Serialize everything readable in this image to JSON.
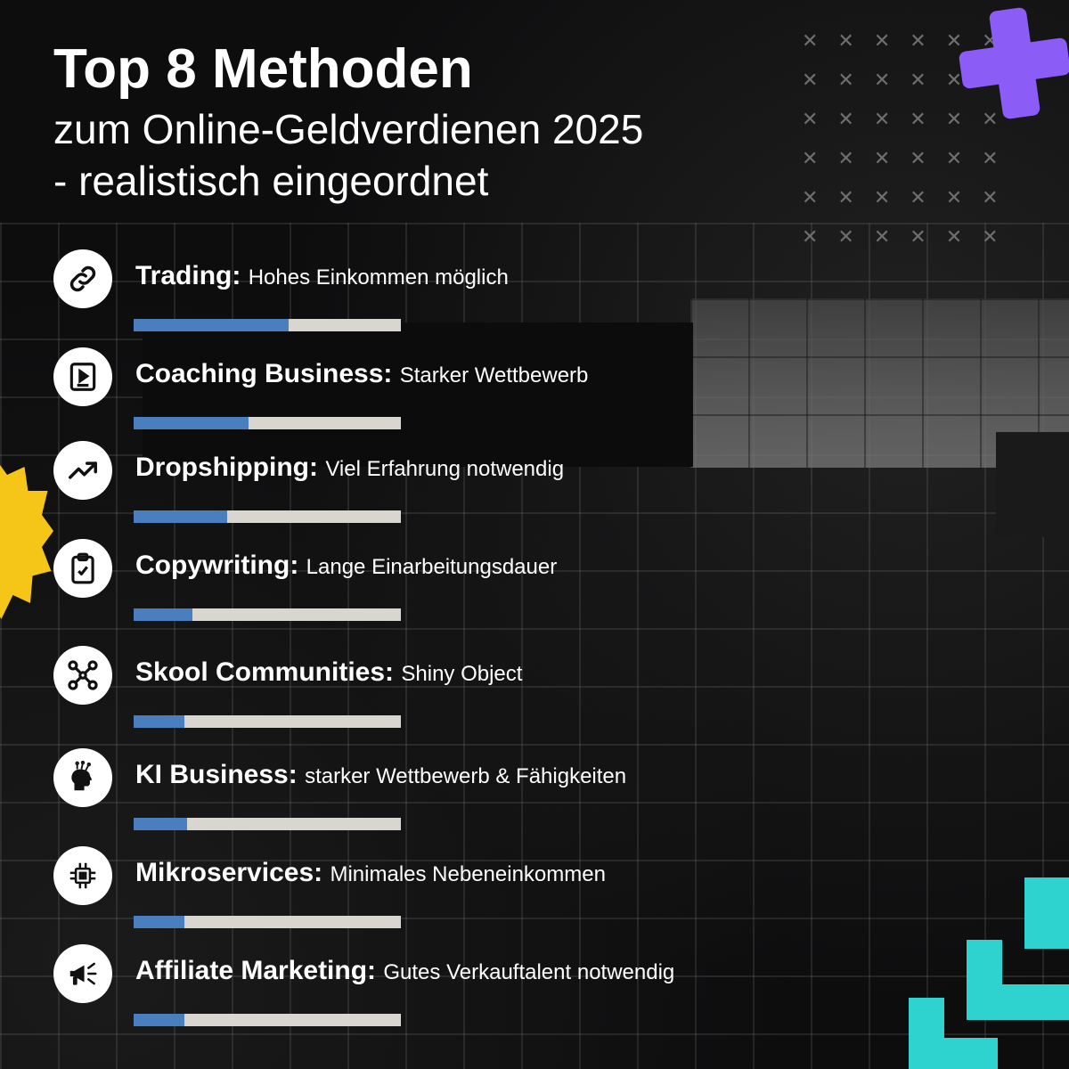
{
  "header": {
    "title": "Top 8 Methoden",
    "subtitle_line1": "zum Online-Geldverdienen 2025",
    "subtitle_line2": "- realistisch eingeordnet"
  },
  "colors": {
    "bar_fill": "#4a7fbf",
    "bar_track": "#d9d5cf",
    "accent_purple": "#8b5cf6",
    "accent_yellow": "#f5c518",
    "accent_teal": "#2ed3d0"
  },
  "methods": [
    {
      "name": "Trading:",
      "desc": "Hohes Einkommen möglich",
      "icon": "link-icon",
      "level": 0.58
    },
    {
      "name": "Coaching Business:",
      "desc": "Starker Wettbewerb",
      "icon": "video-play-icon",
      "level": 0.43
    },
    {
      "name": "Dropshipping:",
      "desc": "Viel Erfahrung notwendig",
      "icon": "trending-up-icon",
      "level": 0.35
    },
    {
      "name": "Copywriting:",
      "desc": "Lange Einarbeitungsdauer",
      "icon": "clipboard-check-icon",
      "level": 0.22
    },
    {
      "name": "Skool Communities:",
      "desc": "Shiny Object",
      "icon": "network-icon",
      "level": 0.19
    },
    {
      "name": "KI Business:",
      "desc": "starker Wettbewerb & Fähigkeiten",
      "icon": "ai-head-icon",
      "level": 0.2
    },
    {
      "name": "Mikroservices:",
      "desc": "Minimales Nebeneinkommen",
      "icon": "chip-icon",
      "level": 0.19
    },
    {
      "name": "Affiliate Marketing:",
      "desc": "Gutes Verkauftalent notwendig",
      "icon": "megaphone-icon",
      "level": 0.19
    }
  ]
}
